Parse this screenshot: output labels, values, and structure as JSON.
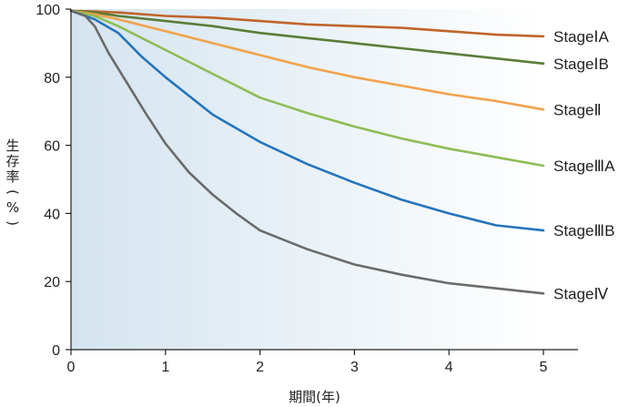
{
  "chart_data": {
    "type": "line",
    "title": "",
    "xlabel": "期間(年)",
    "ylabel": "生存率(%)",
    "xlim": [
      0,
      5
    ],
    "ylim": [
      0,
      100
    ],
    "x_ticks": [
      "0",
      "1",
      "2",
      "3",
      "4",
      "5"
    ],
    "y_ticks": [
      "0",
      "20",
      "40",
      "60",
      "80",
      "100"
    ],
    "grid": false,
    "background": "gradient-blue-to-white",
    "series": [
      {
        "name": "Stage I A",
        "label": "StageⅠA",
        "color": "#c0642a",
        "x": [
          0,
          0.25,
          0.5,
          1,
          1.5,
          2,
          2.5,
          3,
          3.5,
          4,
          4.5,
          5
        ],
        "y": [
          99.5,
          99.3,
          99,
          98,
          97.5,
          96.5,
          95.5,
          95,
          94.5,
          93.5,
          92.5,
          92
        ]
      },
      {
        "name": "Stage I B",
        "label": "StageⅠB",
        "color": "#5a7d38",
        "x": [
          0,
          0.25,
          0.5,
          1,
          1.5,
          2,
          2.5,
          3,
          3.5,
          4,
          4.5,
          5
        ],
        "y": [
          99.5,
          99,
          98,
          96.5,
          95,
          93,
          91.5,
          90,
          88.5,
          87,
          85.5,
          84
        ]
      },
      {
        "name": "Stage II",
        "label": "StageⅡ",
        "color": "#f2a24b",
        "x": [
          0,
          0.25,
          0.5,
          1,
          1.5,
          2,
          2.5,
          3,
          3.5,
          4,
          4.5,
          5
        ],
        "y": [
          99.5,
          98.5,
          97,
          93.5,
          90,
          86.5,
          83,
          80,
          77.5,
          75,
          73,
          70.5
        ]
      },
      {
        "name": "Stage III A",
        "label": "StageⅢA",
        "color": "#8dbd55",
        "x": [
          0,
          0.25,
          0.5,
          1,
          1.5,
          2,
          2.5,
          3,
          3.5,
          4,
          4.5,
          5
        ],
        "y": [
          99.5,
          98,
          95,
          88,
          81,
          74,
          69.5,
          65.5,
          62,
          59,
          56.5,
          54
        ]
      },
      {
        "name": "Stage III B",
        "label": "StageⅢB",
        "color": "#2574bd",
        "x": [
          0,
          0.25,
          0.5,
          0.75,
          1,
          1.5,
          2,
          2.5,
          3,
          3.5,
          4,
          4.5,
          5
        ],
        "y": [
          99.5,
          97,
          93,
          86,
          80,
          69,
          61,
          54.5,
          49,
          44,
          40,
          36.5,
          35
        ]
      },
      {
        "name": "Stage IV",
        "label": "StageⅣ",
        "color": "#6b6b6b",
        "x": [
          0,
          0.15,
          0.25,
          0.4,
          0.6,
          0.8,
          1,
          1.25,
          1.5,
          1.75,
          2,
          2.5,
          3,
          3.5,
          4,
          4.5,
          5
        ],
        "y": [
          99.5,
          98,
          95,
          87,
          78,
          69,
          60.5,
          52,
          45.5,
          40,
          35,
          29.5,
          25,
          22,
          19.5,
          18,
          16.5
        ]
      }
    ]
  }
}
